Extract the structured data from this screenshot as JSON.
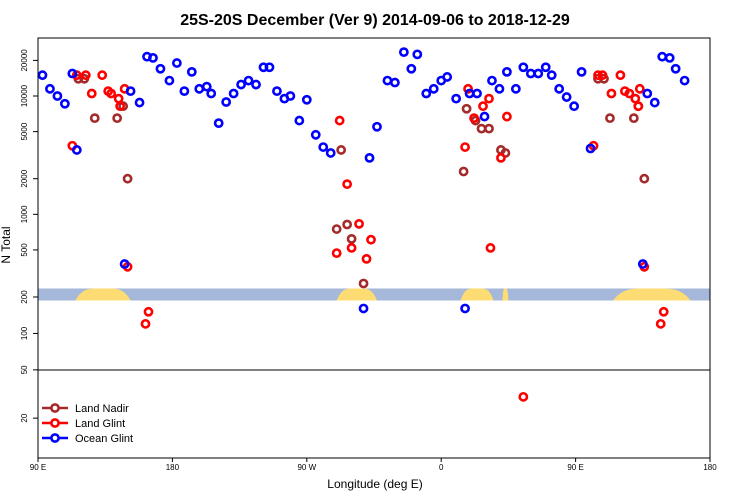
{
  "chart_data": {
    "type": "scatter",
    "title": "25S-20S December (Ver 9)   2014-09-06 to 2018-12-29",
    "xlabel": "Longitude (deg E)",
    "ylabel": "N Total",
    "x_ticks": [
      {
        "value": 90,
        "label": "90 E"
      },
      {
        "value": 180,
        "label": "180"
      },
      {
        "value": 270,
        "label": "90 W"
      },
      {
        "value": 360,
        "label": "0"
      },
      {
        "value": 450,
        "label": "90 E"
      },
      {
        "value": 540,
        "label": "180"
      }
    ],
    "xlim": [
      90,
      540
    ],
    "y_scale": "log",
    "y_ticks": [
      {
        "value": 20,
        "label": "20"
      },
      {
        "value": 50,
        "label": "50"
      },
      {
        "value": 100,
        "label": "100"
      },
      {
        "value": 200,
        "label": "200"
      },
      {
        "value": 500,
        "label": "500"
      },
      {
        "value": 1000,
        "label": "1000"
      },
      {
        "value": 2000,
        "label": "2000"
      },
      {
        "value": 5000,
        "label": "5000"
      },
      {
        "value": 10000,
        "label": "10000"
      },
      {
        "value": 20000,
        "label": "20000"
      }
    ],
    "legend": {
      "placement": "bottom-left",
      "entries": [
        {
          "label": "Land Nadir",
          "color": "#a52a2a"
        },
        {
          "label": "Land Glint",
          "color": "#ff0000"
        },
        {
          "label": "Ocean Glint",
          "color": "#0000ff"
        }
      ]
    },
    "land_band": {
      "y_value": 210,
      "ocean_color": "#a5b8da",
      "land_color": "#fddc73",
      "land_segments": [
        [
          115,
          152
        ],
        [
          290,
          317
        ],
        [
          373,
          395
        ],
        [
          401,
          405
        ],
        [
          475,
          527
        ]
      ]
    },
    "series": [
      {
        "name": "Land Nadir",
        "color": "#a52a2a",
        "points": [
          [
            117,
            14000
          ],
          [
            121,
            14000
          ],
          [
            128,
            6500
          ],
          [
            143,
            6500
          ],
          [
            147,
            8200
          ],
          [
            150,
            2000
          ],
          [
            290,
            750
          ],
          [
            293,
            3500
          ],
          [
            297,
            820
          ],
          [
            300,
            620
          ],
          [
            308,
            260
          ],
          [
            375,
            2300
          ],
          [
            377,
            7800
          ],
          [
            383,
            6200
          ],
          [
            387,
            5300
          ],
          [
            392,
            5300
          ],
          [
            400,
            3500
          ],
          [
            403,
            3300
          ],
          [
            465,
            14000
          ],
          [
            469,
            14000
          ],
          [
            473,
            6500
          ],
          [
            489,
            6500
          ],
          [
            492,
            8200
          ],
          [
            496,
            2000
          ]
        ]
      },
      {
        "name": "Land Glint",
        "color": "#ff0000",
        "points": [
          [
            113,
            3800
          ],
          [
            116,
            15000
          ],
          [
            122,
            15000
          ],
          [
            126,
            10500
          ],
          [
            133,
            15000
          ],
          [
            137,
            11000
          ],
          [
            139,
            10500
          ],
          [
            144,
            9500
          ],
          [
            145,
            8200
          ],
          [
            148,
            11500
          ],
          [
            150,
            360
          ],
          [
            162,
            120
          ],
          [
            164,
            150
          ],
          [
            290,
            470
          ],
          [
            292,
            6200
          ],
          [
            297,
            1800
          ],
          [
            300,
            520
          ],
          [
            305,
            830
          ],
          [
            310,
            420
          ],
          [
            313,
            610
          ],
          [
            376,
            3700
          ],
          [
            378,
            11500
          ],
          [
            382,
            6500
          ],
          [
            388,
            8200
          ],
          [
            392,
            9500
          ],
          [
            393,
            520
          ],
          [
            400,
            3000
          ],
          [
            404,
            6700
          ],
          [
            415,
            30
          ],
          [
            462,
            3800
          ],
          [
            465,
            15000
          ],
          [
            468,
            15000
          ],
          [
            474,
            10500
          ],
          [
            480,
            15000
          ],
          [
            483,
            11000
          ],
          [
            486,
            10500
          ],
          [
            490,
            9500
          ],
          [
            492,
            8200
          ],
          [
            493,
            11500
          ],
          [
            496,
            360
          ],
          [
            507,
            120
          ],
          [
            509,
            150
          ]
        ]
      },
      {
        "name": "Ocean Glint",
        "color": "#0000ff",
        "points": [
          [
            93,
            15000
          ],
          [
            98,
            11500
          ],
          [
            103,
            10000
          ],
          [
            108,
            8600
          ],
          [
            113,
            15500
          ],
          [
            116,
            3500
          ],
          [
            148,
            380
          ],
          [
            152,
            11000
          ],
          [
            158,
            8800
          ],
          [
            163,
            21500
          ],
          [
            167,
            21000
          ],
          [
            172,
            17000
          ],
          [
            178,
            13500
          ],
          [
            183,
            19000
          ],
          [
            188,
            11000
          ],
          [
            193,
            16000
          ],
          [
            198,
            11500
          ],
          [
            203,
            12000
          ],
          [
            206,
            10500
          ],
          [
            211,
            5900
          ],
          [
            216,
            8900
          ],
          [
            221,
            10500
          ],
          [
            226,
            12500
          ],
          [
            231,
            13500
          ],
          [
            236,
            12500
          ],
          [
            241,
            17500
          ],
          [
            245,
            17500
          ],
          [
            250,
            11000
          ],
          [
            255,
            9500
          ],
          [
            259,
            10000
          ],
          [
            265,
            6200
          ],
          [
            270,
            9300
          ],
          [
            276,
            4700
          ],
          [
            281,
            3700
          ],
          [
            286,
            3300
          ],
          [
            308,
            160
          ],
          [
            312,
            3000
          ],
          [
            317,
            5500
          ],
          [
            324,
            13500
          ],
          [
            329,
            13000
          ],
          [
            335,
            23500
          ],
          [
            340,
            17000
          ],
          [
            344,
            22500
          ],
          [
            350,
            10500
          ],
          [
            355,
            11500
          ],
          [
            360,
            13500
          ],
          [
            364,
            14500
          ],
          [
            370,
            9500
          ],
          [
            376,
            160
          ],
          [
            379,
            10500
          ],
          [
            384,
            10500
          ],
          [
            389,
            6700
          ],
          [
            394,
            13500
          ],
          [
            399,
            11500
          ],
          [
            404,
            16000
          ],
          [
            410,
            11500
          ],
          [
            415,
            17500
          ],
          [
            420,
            15500
          ],
          [
            425,
            15500
          ],
          [
            430,
            17500
          ],
          [
            434,
            15000
          ],
          [
            439,
            11500
          ],
          [
            444,
            9800
          ],
          [
            449,
            8200
          ],
          [
            454,
            16000
          ],
          [
            460,
            3600
          ],
          [
            495,
            380
          ],
          [
            498,
            10500
          ],
          [
            503,
            8800
          ],
          [
            508,
            21500
          ],
          [
            513,
            21000
          ],
          [
            517,
            17000
          ],
          [
            523,
            13500
          ]
        ]
      }
    ]
  }
}
